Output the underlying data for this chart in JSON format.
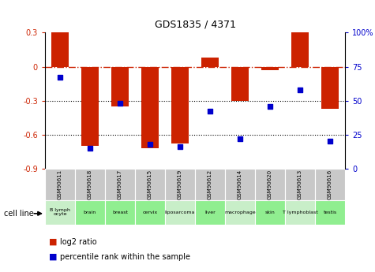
{
  "title": "GDS1835 / 4371",
  "samples": [
    "GSM90611",
    "GSM90618",
    "GSM90617",
    "GSM90615",
    "GSM90619",
    "GSM90612",
    "GSM90614",
    "GSM90620",
    "GSM90613",
    "GSM90616"
  ],
  "cell_lines": [
    "B lymph\nocyte",
    "brain",
    "breast",
    "cervix",
    "liposarcoma",
    "liver",
    "macrophage",
    "skin",
    "T lymphoblast",
    "testis"
  ],
  "cell_line_colors": [
    "#c8eec8",
    "#90ee90",
    "#90ee90",
    "#90ee90",
    "#c8eec8",
    "#90ee90",
    "#c8eec8",
    "#90ee90",
    "#c8eec8",
    "#90ee90"
  ],
  "gsm_bg_color": "#c8c8c8",
  "log2_ratios": [
    0.3,
    -0.7,
    -0.35,
    -0.72,
    -0.68,
    0.08,
    -0.3,
    -0.03,
    0.3,
    -0.37
  ],
  "percentile_ranks": [
    67,
    15,
    48,
    18,
    16,
    42,
    22,
    46,
    58,
    20
  ],
  "bar_color": "#cc2200",
  "dot_color": "#0000cc",
  "left_ylim": [
    -0.9,
    0.3
  ],
  "right_ylim": [
    0,
    100
  ],
  "left_yticks": [
    -0.9,
    -0.6,
    -0.3,
    0,
    0.3
  ],
  "right_yticks": [
    0,
    25,
    50,
    75,
    100
  ],
  "legend_items": [
    "log2 ratio",
    "percentile rank within the sample"
  ]
}
